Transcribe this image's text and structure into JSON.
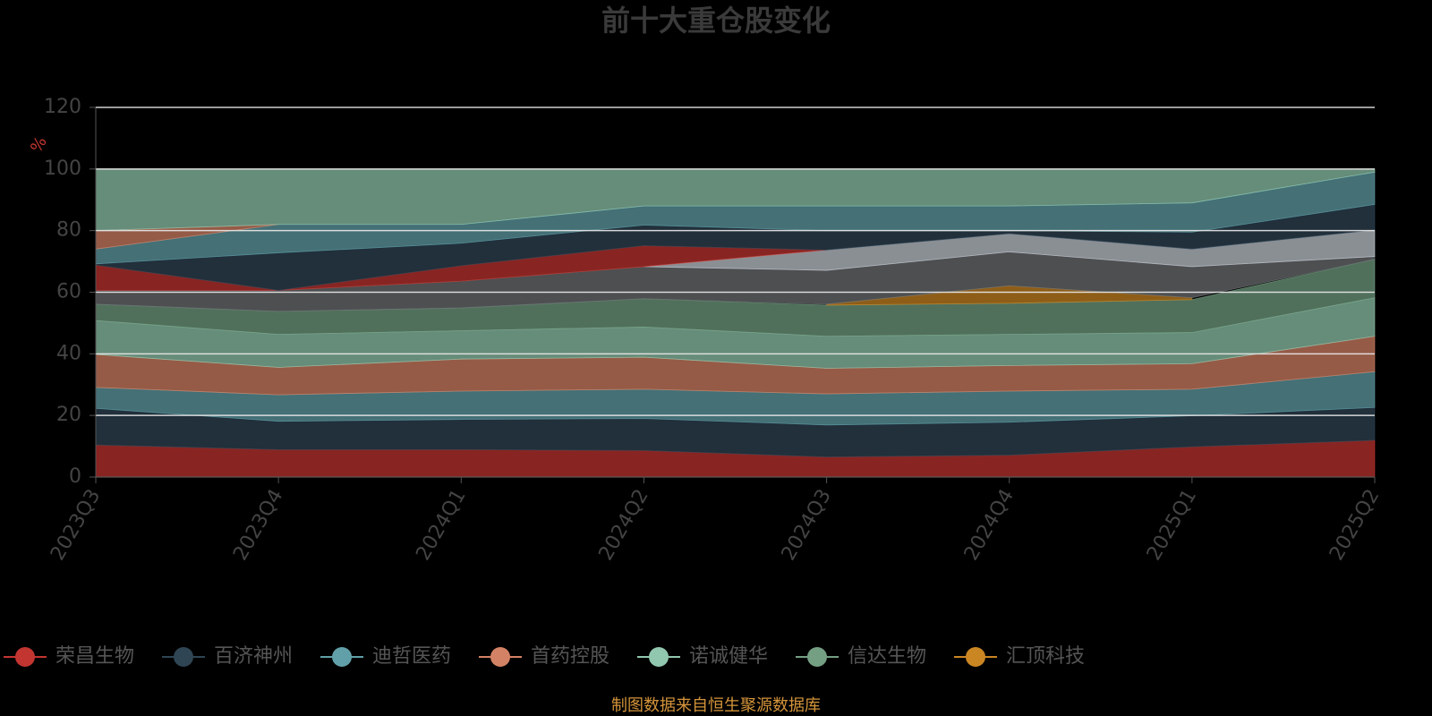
{
  "chart_data": {
    "type": "stacked-area",
    "title": "前十大重仓股变化",
    "y_label": "%",
    "source": "制图数据来自恒生聚源数据库",
    "categories": [
      "2023Q3",
      "2023Q4",
      "2024Q1",
      "2024Q2",
      "2024Q3",
      "2024Q4",
      "2025Q1",
      "2025Q2"
    ],
    "ylim": [
      0,
      120
    ],
    "yticks": [
      0,
      20,
      40,
      60,
      80,
      100,
      120
    ],
    "grid": true,
    "series": [
      {
        "name": "荣昌生物",
        "color": "#c23531",
        "values": [
          10.4,
          8.9,
          8.9,
          8.6,
          6.5,
          7.1,
          9.8,
          11.9
        ]
      },
      {
        "name": "百济神州",
        "color": "#2f4554",
        "values": [
          11.9,
          9.2,
          9.8,
          10.4,
          10.4,
          10.7,
          10.1,
          10.7
        ]
      },
      {
        "name": "迪哲医药",
        "color": "#61a0a8",
        "values": [
          6.8,
          8.6,
          9.2,
          9.5,
          10.1,
          10.1,
          8.6,
          11.6
        ]
      },
      {
        "name": "首药控股",
        "color": "#d48265",
        "values": [
          10.7,
          8.9,
          10.4,
          10.4,
          8.3,
          8.3,
          8.3,
          11.5
        ]
      },
      {
        "name": "诺诚健华",
        "color": "#91c7ae",
        "values": [
          11.0,
          10.7,
          9.2,
          9.8,
          10.4,
          10.1,
          10.1,
          12.5
        ]
      },
      {
        "name": "信达生物",
        "color": "#749f83",
        "values": [
          5.3,
          7.5,
          7.4,
          9.2,
          10.1,
          10.1,
          10.7,
          12.5
        ]
      },
      {
        "name": "汇顶科技",
        "color": "#ca8622",
        "values": [
          null,
          null,
          null,
          null,
          0.3,
          5.7,
          0.6,
          null
        ]
      },
      {
        "color": "#6e7074",
        "values": [
          4.5,
          6.8,
          8.7,
          10.4,
          11.0,
          11.0,
          10.1,
          0.9
        ]
      },
      {
        "color": "#c4ccd3",
        "values": [
          null,
          null,
          null,
          0,
          6.6,
          5.9,
          5.7,
          8.6
        ]
      },
      {
        "color": "#c23531",
        "values": [
          8.2,
          0,
          5.0,
          6.8,
          0,
          null,
          null,
          null
        ]
      },
      {
        "color": "#2f4554",
        "values": [
          0.4,
          12.2,
          7.3,
          6.7,
          6.3,
          1.0,
          5.5,
          8.3
        ]
      },
      {
        "color": "#61a0a8",
        "values": [
          4.8,
          9.2,
          6.1,
          6.2,
          8.0,
          8.0,
          9.5,
          10.5
        ]
      },
      {
        "color": "#d48265",
        "values": [
          6.0,
          0,
          null,
          null,
          null,
          null,
          null,
          null
        ]
      },
      {
        "color": "#91c7ae",
        "values": [
          20.0,
          18.0,
          18.0,
          12.0,
          12.0,
          12.0,
          11.0,
          1.0
        ]
      }
    ]
  }
}
